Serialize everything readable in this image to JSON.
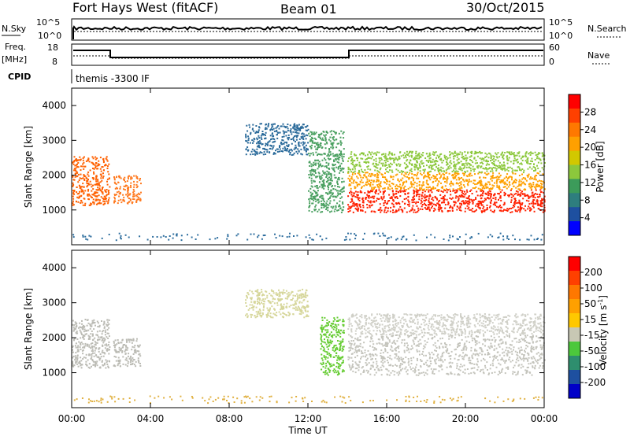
{
  "header": {
    "site": "Fort Hays West (fitACF)",
    "beam": "Beam 01",
    "date": "30/Oct/2015"
  },
  "top_panels": {
    "nsky_label": "N.Sky",
    "nsky_ticks": [
      "10^5",
      "10^0"
    ],
    "nsearch_label": "N.Search",
    "nsearch_ticks": [
      "10^5",
      "10^0"
    ],
    "freq_label": "Freq.",
    "freq_unit": "[MHz]",
    "freq_ticks": [
      "18",
      "8"
    ],
    "nave_label": "Nave",
    "nave_ticks": [
      "60",
      "0"
    ],
    "cpid_label": "CPID",
    "cpid_text": "themis -3300 IF"
  },
  "chart_data": [
    {
      "type": "heatmap",
      "name": "power-panel",
      "ylabel": "Slant Range [km]",
      "xlabel": "Time UT",
      "x_ticks": [
        "00:00",
        "04:00",
        "08:00",
        "12:00",
        "16:00",
        "20:00",
        "00:00"
      ],
      "y_ticks": [
        "1000",
        "2000",
        "3000",
        "4000"
      ],
      "xlim": [
        0,
        24
      ],
      "ylim": [
        0,
        4500
      ],
      "colorbar": {
        "label": "Power [dB]",
        "ticks": [
          "4",
          "8",
          "12",
          "16",
          "20",
          "24",
          "28"
        ],
        "colors": [
          "#0000ff",
          "#1e50a0",
          "#2e7e7e",
          "#3c9b5a",
          "#8cc83c",
          "#d2c800",
          "#ffa000",
          "#ff7800",
          "#ff4000",
          "#ff0000"
        ]
      },
      "bands": [
        {
          "t0": 0.0,
          "t1": 1.9,
          "r0": 1150,
          "r1": 2550,
          "c": "#ff6000"
        },
        {
          "t0": 2.1,
          "t1": 3.5,
          "r0": 1200,
          "r1": 2000,
          "c": "#ff7a20"
        },
        {
          "t0": 8.8,
          "t1": 12.0,
          "r0": 2600,
          "r1": 3500,
          "c": "#2a6a9a"
        },
        {
          "t0": 12.0,
          "t1": 13.8,
          "r0": 950,
          "r1": 3300,
          "c": "#4aa060"
        },
        {
          "t0": 14.0,
          "t1": 24.0,
          "r0": 950,
          "r1": 1600,
          "c": "#ff2000"
        },
        {
          "t0": 14.0,
          "t1": 24.0,
          "r0": 1600,
          "r1": 2100,
          "c": "#ffa000"
        },
        {
          "t0": 14.0,
          "t1": 24.0,
          "r0": 2100,
          "r1": 2700,
          "c": "#8cc83c"
        }
      ]
    },
    {
      "type": "heatmap",
      "name": "velocity-panel",
      "ylabel": "Slant Range [km]",
      "xlabel": "Time UT",
      "x_ticks": [
        "00:00",
        "04:00",
        "08:00",
        "12:00",
        "16:00",
        "20:00",
        "00:00"
      ],
      "y_ticks": [
        "1000",
        "2000",
        "3000",
        "4000"
      ],
      "xlim": [
        0,
        24
      ],
      "ylim": [
        0,
        4500
      ],
      "colorbar": {
        "label": "Velocity [m s",
        "label_sup": "-1",
        "label_end": "]",
        "ticks": [
          "200",
          "100",
          "50",
          "15",
          "-15",
          "-50",
          "-100",
          "-200"
        ],
        "colors": [
          "#0000c8",
          "#1e50a0",
          "#2e8e6e",
          "#4cc83c",
          "#c8c8b4",
          "#ffc800",
          "#ffa000",
          "#ff7800",
          "#ff4000",
          "#ff0000"
        ]
      },
      "bands": [
        {
          "t0": 0.0,
          "t1": 1.9,
          "r0": 1150,
          "r1": 2550,
          "c": "#bbbbb4"
        },
        {
          "t0": 2.1,
          "t1": 3.5,
          "r0": 1200,
          "r1": 2000,
          "c": "#bbbbb4"
        },
        {
          "t0": 8.8,
          "t1": 12.0,
          "r0": 2600,
          "r1": 3400,
          "c": "#d6d69a"
        },
        {
          "t0": 12.6,
          "t1": 13.8,
          "r0": 950,
          "r1": 2600,
          "c": "#66cc33"
        },
        {
          "t0": 14.0,
          "t1": 24.0,
          "r0": 950,
          "r1": 2100,
          "c": "#c4c4bc"
        },
        {
          "t0": 14.0,
          "t1": 24.0,
          "r0": 2100,
          "r1": 2700,
          "c": "#d0d0c8"
        }
      ]
    }
  ]
}
